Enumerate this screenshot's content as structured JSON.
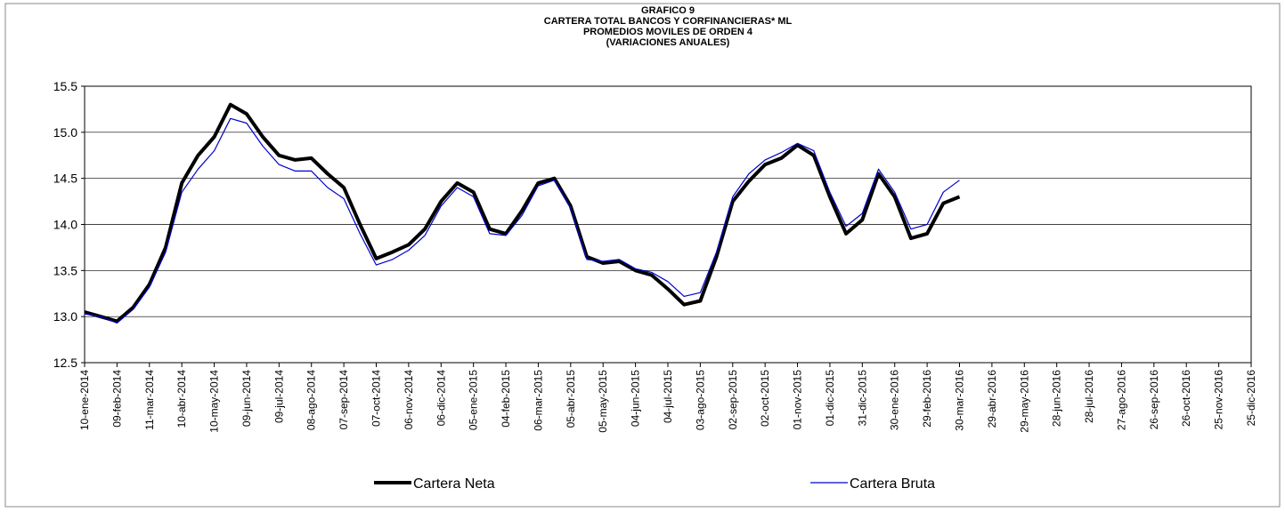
{
  "chart_data": {
    "type": "line",
    "title": [
      "GRAFICO 9",
      "CARTERA TOTAL BANCOS Y CORFINANCIERAS* ML",
      "PROMEDIOS MOVILES DE ORDEN 4",
      "(VARIACIONES ANUALES)"
    ],
    "categories": [
      "10-ene-2014",
      null,
      "09-feb-2014",
      null,
      "11-mar-2014",
      null,
      "10-abr-2014",
      null,
      "10-may-2014",
      null,
      "09-jun-2014",
      null,
      "09-jul-2014",
      null,
      "08-ago-2014",
      null,
      "07-sep-2014",
      null,
      "07-oct-2014",
      null,
      "06-nov-2014",
      null,
      "06-dic-2014",
      null,
      "05-ene-2015",
      null,
      "04-feb-2015",
      null,
      "06-mar-2015",
      null,
      "05-abr-2015",
      null,
      "05-may-2015",
      null,
      "04-jun-2015",
      null,
      "04-jul-2015",
      null,
      "03-ago-2015",
      null,
      "02-sep-2015",
      null,
      "02-oct-2015",
      null,
      "01-nov-2015",
      null,
      "01-dic-2015",
      null,
      "31-dic-2015",
      null,
      "30-ene-2016",
      null,
      "29-feb-2016",
      null,
      "30-mar-2016",
      null,
      "29-abr-2016",
      null,
      "29-may-2016",
      null,
      "28-jun-2016",
      null,
      "28-jul-2016",
      null,
      "27-ago-2016",
      null,
      "26-sep-2016",
      null,
      "26-oct-2016",
      null,
      "25-nov-2016",
      null,
      "25-dic-2016"
    ],
    "series": [
      {
        "name": "Cartera Neta",
        "color": "#000000",
        "width": 4,
        "values": [
          13.05,
          13.0,
          12.95,
          13.1,
          13.35,
          13.75,
          14.45,
          14.75,
          14.95,
          15.3,
          15.2,
          14.95,
          14.75,
          14.7,
          14.72,
          14.55,
          14.4,
          14.0,
          13.63,
          13.7,
          13.78,
          13.95,
          14.25,
          14.45,
          14.35,
          13.95,
          13.9,
          14.15,
          14.45,
          14.5,
          14.2,
          13.65,
          13.58,
          13.6,
          13.5,
          13.45,
          13.3,
          13.13,
          13.17,
          13.65,
          14.25,
          14.47,
          14.65,
          14.72,
          14.86,
          14.75,
          14.3,
          13.9,
          14.05,
          14.55,
          14.3,
          13.85,
          13.9,
          14.23,
          14.3,
          null,
          null,
          null,
          null,
          null,
          null,
          null,
          null,
          null,
          null,
          null,
          null,
          null,
          null,
          null,
          null,
          null,
          null
        ]
      },
      {
        "name": "Cartera Bruta",
        "color": "#0000cc",
        "width": 1.2,
        "values": [
          13.03,
          13.0,
          12.93,
          13.08,
          13.32,
          13.7,
          14.35,
          14.6,
          14.8,
          15.15,
          15.1,
          14.85,
          14.65,
          14.58,
          14.58,
          14.4,
          14.28,
          13.9,
          13.56,
          13.62,
          13.72,
          13.88,
          14.2,
          14.4,
          14.3,
          13.9,
          13.88,
          14.1,
          14.42,
          14.48,
          14.18,
          13.62,
          13.6,
          13.62,
          13.52,
          13.48,
          13.38,
          13.22,
          13.26,
          13.7,
          14.3,
          14.55,
          14.7,
          14.78,
          14.88,
          14.8,
          14.35,
          13.98,
          14.12,
          14.6,
          14.35,
          13.95,
          14.0,
          14.35,
          14.48,
          null,
          null,
          null,
          null,
          null,
          null,
          null,
          null,
          null,
          null,
          null,
          null,
          null,
          null,
          null,
          null,
          null,
          null
        ]
      }
    ],
    "ylim": [
      12.5,
      15.5
    ],
    "yticks": [
      12.5,
      {
        "value": 13,
        "label": "13.0"
      },
      13.5,
      {
        "value": 14,
        "label": "14.0"
      },
      14.5,
      {
        "value": 15,
        "label": "15.0"
      },
      15.5
    ],
    "grid": true,
    "legend": "bottom"
  }
}
